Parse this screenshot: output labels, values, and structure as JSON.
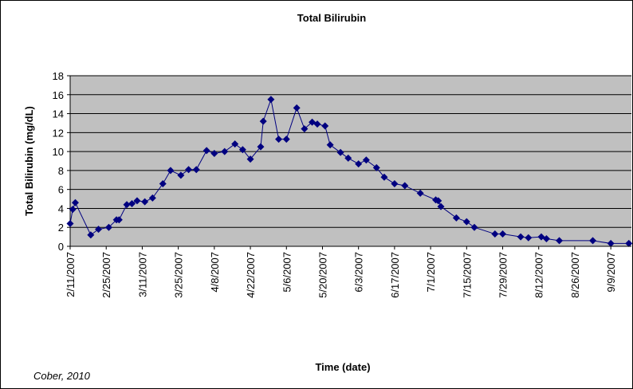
{
  "chart_data": {
    "type": "line",
    "title": "Total Bilirubin",
    "x_label": "Time (date)",
    "y_label": "Total Bilirubin (mg/dL)",
    "annotation": "Cober, 2010",
    "x": [
      "2007-02-11",
      "2007-02-12",
      "2007-02-13",
      "2007-02-19",
      "2007-02-22",
      "2007-02-26",
      "2007-03-01",
      "2007-03-02",
      "2007-03-05",
      "2007-03-07",
      "2007-03-09",
      "2007-03-12",
      "2007-03-15",
      "2007-03-19",
      "2007-03-22",
      "2007-03-26",
      "2007-03-29",
      "2007-04-01",
      "2007-04-05",
      "2007-04-08",
      "2007-04-12",
      "2007-04-16",
      "2007-04-19",
      "2007-04-22",
      "2007-04-26",
      "2007-04-27",
      "2007-04-30",
      "2007-05-03",
      "2007-05-06",
      "2007-05-10",
      "2007-05-13",
      "2007-05-16",
      "2007-05-18",
      "2007-05-21",
      "2007-05-23",
      "2007-05-27",
      "2007-05-30",
      "2007-06-03",
      "2007-06-06",
      "2007-06-10",
      "2007-06-13",
      "2007-06-17",
      "2007-06-21",
      "2007-06-27",
      "2007-07-03",
      "2007-07-04",
      "2007-07-05",
      "2007-07-11",
      "2007-07-15",
      "2007-07-18",
      "2007-07-26",
      "2007-07-29",
      "2007-08-05",
      "2007-08-08",
      "2007-08-13",
      "2007-08-15",
      "2007-08-20",
      "2007-09-02",
      "2007-09-09",
      "2007-09-16"
    ],
    "series": [
      {
        "name": "Total Bilirubin",
        "color": "#000080",
        "values": [
          2.4,
          3.9,
          4.6,
          1.2,
          1.8,
          2.0,
          2.8,
          2.8,
          4.4,
          4.5,
          4.8,
          4.7,
          5.1,
          6.6,
          8.0,
          7.5,
          8.1,
          8.1,
          10.1,
          9.8,
          10.0,
          10.8,
          10.2,
          9.2,
          10.5,
          13.2,
          15.5,
          11.3,
          11.3,
          14.6,
          12.4,
          13.1,
          12.9,
          12.7,
          10.7,
          9.9,
          9.3,
          8.7,
          9.1,
          8.3,
          7.3,
          6.6,
          6.4,
          5.6,
          4.9,
          4.8,
          4.2,
          3.0,
          2.6,
          2.0,
          1.3,
          1.3,
          1.0,
          0.9,
          1.0,
          0.8,
          0.6,
          0.6,
          0.3,
          0.3
        ]
      }
    ],
    "xlim": [
      "2007-02-11",
      "2007-09-17"
    ],
    "xticks": [
      {
        "value": "2007-02-11",
        "label": "2/11/2007"
      },
      {
        "value": "2007-02-25",
        "label": "2/25/2007"
      },
      {
        "value": "2007-03-11",
        "label": "3/11/2007"
      },
      {
        "value": "2007-03-25",
        "label": "3/25/2007"
      },
      {
        "value": "2007-04-08",
        "label": "4/8/2007"
      },
      {
        "value": "2007-04-22",
        "label": "4/22/2007"
      },
      {
        "value": "2007-05-06",
        "label": "5/6/2007"
      },
      {
        "value": "2007-05-20",
        "label": "5/20/2007"
      },
      {
        "value": "2007-06-03",
        "label": "6/3/2007"
      },
      {
        "value": "2007-06-17",
        "label": "6/17/2007"
      },
      {
        "value": "2007-07-01",
        "label": "7/1/2007"
      },
      {
        "value": "2007-07-15",
        "label": "7/15/2007"
      },
      {
        "value": "2007-07-29",
        "label": "7/29/2007"
      },
      {
        "value": "2007-08-12",
        "label": "8/12/2007"
      },
      {
        "value": "2007-08-26",
        "label": "8/26/2007"
      },
      {
        "value": "2007-09-09",
        "label": "9/9/2007"
      }
    ],
    "ylim": [
      0,
      18
    ],
    "yticks": [
      0,
      2,
      4,
      6,
      8,
      10,
      12,
      14,
      16,
      18
    ],
    "grid": true,
    "plot_background": "#c0c0c0"
  }
}
